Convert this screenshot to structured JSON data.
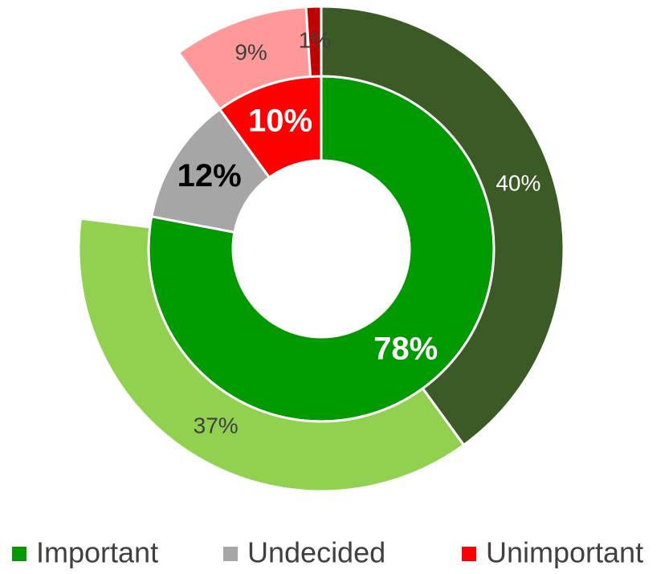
{
  "chart_data": {
    "type": "nested-donut",
    "categories": [
      "Important",
      "Undecided",
      "Unimportant"
    ],
    "values": [
      78,
      12,
      10
    ],
    "value_labels": [
      "78%",
      "12%",
      "10%"
    ],
    "colors": [
      "#009900",
      "#a6a6a6",
      "#ff0000"
    ],
    "label_colors": [
      "#ffffff",
      "#000000",
      "#ffffff"
    ],
    "outer": {
      "values": [
        [
          40,
          37
        ],
        [],
        [
          9,
          1
        ]
      ],
      "value_labels": [
        [
          "40%",
          "37%"
        ],
        [],
        [
          "9%",
          "1%"
        ]
      ],
      "colors": [
        [
          "#3b5a26",
          "#92d050"
        ],
        [],
        [
          "#ff9999",
          "#c00000"
        ]
      ],
      "label_colors": [
        [
          "#ffffff",
          "#404040"
        ],
        [],
        [
          "#404040",
          "#404040"
        ]
      ]
    }
  }
}
